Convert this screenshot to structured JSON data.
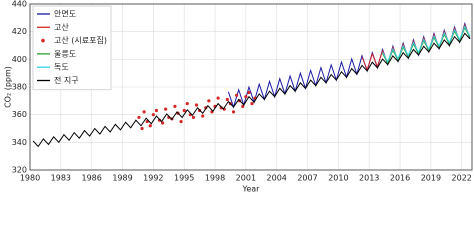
{
  "chart_data": {
    "type": "line",
    "xlabel": "Year",
    "ylabel": "CO₂ (ppm)",
    "xlim": [
      1980,
      2023
    ],
    "ylim": [
      320,
      440
    ],
    "xticks": [
      1980,
      1983,
      1986,
      1989,
      1992,
      1995,
      1998,
      2001,
      2004,
      2007,
      2010,
      2013,
      2016,
      2019,
      2022
    ],
    "yticks": [
      320,
      340,
      360,
      380,
      400,
      420,
      440
    ],
    "grid": true,
    "legend": "upper left",
    "series": [
      {
        "name": "안면도",
        "color": "#1a1aa6",
        "mode": "line",
        "x": [
          1999.3,
          1999.8,
          2000.3,
          2000.8,
          2001.3,
          2001.8,
          2002.3,
          2002.8,
          2003.3,
          2003.8,
          2004.3,
          2004.8,
          2005.3,
          2005.8,
          2006.3,
          2006.8,
          2007.3,
          2007.8,
          2008.3,
          2008.8,
          2009.3,
          2009.8,
          2010.3,
          2010.8,
          2011.3,
          2011.8,
          2012.3,
          2012.8,
          2013.3,
          2013.8,
          2014.3,
          2014.8,
          2015.3,
          2015.8,
          2016.3,
          2016.8,
          2017.3,
          2017.8,
          2018.3,
          2018.8,
          2019.3,
          2019.8,
          2020.3,
          2020.8,
          2021.3,
          2021.8,
          2022.3,
          2022.8
        ],
        "values": [
          376.5,
          365.5,
          378,
          367,
          380,
          369,
          382,
          371,
          384,
          373,
          386,
          375,
          388,
          377,
          390,
          379,
          392,
          381,
          394,
          383,
          396,
          385,
          398,
          387,
          400.3,
          389.3,
          402.6,
          391.6,
          404.9,
          393.9,
          407.2,
          396.2,
          409.5,
          398.5,
          411.8,
          400.8,
          414.1,
          403.1,
          416.4,
          405.4,
          418.7,
          407.7,
          421,
          410,
          423.4,
          412.4,
          425.8,
          414.8
        ]
      },
      {
        "name": "고산",
        "color": "#d62728",
        "mode": "line",
        "x": [
          2012.3,
          2012.8,
          2013.3,
          2013.8,
          2014.3,
          2014.8,
          2015.3,
          2015.8,
          2016.3,
          2016.8,
          2017.3,
          2017.8,
          2018.3,
          2018.8,
          2019.3,
          2019.8,
          2020.3,
          2020.8,
          2021.3,
          2021.8,
          2022.3,
          2022.8
        ],
        "values": [
          401.6,
          392.6,
          403.9,
          394.9,
          406.2,
          397.2,
          408.5,
          399.5,
          410.8,
          401.8,
          413.1,
          404.1,
          415.4,
          406.4,
          417.7,
          408.7,
          420,
          411,
          422.4,
          413.4,
          424.8,
          415.8
        ]
      },
      {
        "name": "고산 (시료포집)",
        "color": "#d62728",
        "mode": "markers",
        "x": [
          1990.6,
          1990.9,
          1991.1,
          1991.4,
          1991.7,
          1992.0,
          1992.3,
          1992.6,
          1992.9,
          1993.2,
          1993.5,
          1993.8,
          1994.1,
          1994.4,
          1994.7,
          1995.0,
          1995.3,
          1995.6,
          1995.9,
          1996.2,
          1996.5,
          1996.8,
          1997.1,
          1997.4,
          1997.7,
          1998.0,
          1998.3,
          1998.6,
          1998.9,
          1999.2,
          1999.5,
          1999.8,
          2000.1,
          2000.4,
          2000.7,
          2001.0,
          2001.3,
          2001.6,
          2001.9
        ],
        "values": [
          358,
          350,
          362,
          355,
          352,
          360,
          363,
          356,
          354,
          364,
          358,
          357,
          366,
          361,
          355,
          363,
          368,
          360,
          358,
          367,
          363,
          359,
          365,
          370,
          362,
          366,
          372,
          365,
          364,
          371,
          368,
          362,
          374,
          370,
          366,
          373,
          376,
          368,
          372
        ]
      },
      {
        "name": "울릉도",
        "color": "#2ca02c",
        "mode": "line",
        "x": [
          2014.3,
          2014.8,
          2015.3,
          2015.8,
          2016.3,
          2016.8,
          2017.3,
          2017.8,
          2018.3,
          2018.8,
          2019.3,
          2019.8,
          2020.3,
          2020.8,
          2021.3,
          2021.8,
          2022.3,
          2022.8
        ],
        "values": [
          404.2,
          397.2,
          406.5,
          399.5,
          408.8,
          401.8,
          411.1,
          404.1,
          413.4,
          406.4,
          415.7,
          408.7,
          418,
          411,
          420.4,
          413.4,
          422.8,
          415.8
        ]
      },
      {
        "name": "독도",
        "color": "#33d6e6",
        "mode": "line",
        "x": [
          2014.3,
          2014.8,
          2015.3,
          2015.8,
          2016.3,
          2016.8,
          2017.3,
          2017.8,
          2018.3,
          2018.8,
          2019.3,
          2019.8,
          2020.3,
          2020.8,
          2021.3,
          2021.8,
          2022.3,
          2022.8
        ],
        "values": [
          405.2,
          398.2,
          407.5,
          400.5,
          409.8,
          402.8,
          412.1,
          405.1,
          414.4,
          407.4,
          416.7,
          409.7,
          419,
          412,
          421.4,
          414.4,
          423.8,
          416.8
        ]
      },
      {
        "name": "전 지구",
        "color": "#000000",
        "mode": "line",
        "x": [
          1980.3,
          1980.8,
          1981.3,
          1981.8,
          1982.3,
          1982.8,
          1983.3,
          1983.8,
          1984.3,
          1984.8,
          1985.3,
          1985.8,
          1986.3,
          1986.8,
          1987.3,
          1987.8,
          1988.3,
          1988.8,
          1989.3,
          1989.8,
          1990.3,
          1990.8,
          1991.3,
          1991.8,
          1992.3,
          1992.8,
          1993.3,
          1993.8,
          1994.3,
          1994.8,
          1995.3,
          1995.8,
          1996.3,
          1996.8,
          1997.3,
          1997.8,
          1998.3,
          1998.8,
          1999.3,
          1999.8,
          2000.3,
          2000.8,
          2001.3,
          2001.8,
          2002.3,
          2002.8,
          2003.3,
          2003.8,
          2004.3,
          2004.8,
          2005.3,
          2005.8,
          2006.3,
          2006.8,
          2007.3,
          2007.8,
          2008.3,
          2008.8,
          2009.3,
          2009.8,
          2010.3,
          2010.8,
          2011.3,
          2011.8,
          2012.3,
          2012.8,
          2013.3,
          2013.8,
          2014.3,
          2014.8,
          2015.3,
          2015.8,
          2016.3,
          2016.8,
          2017.3,
          2017.8,
          2018.3,
          2018.8,
          2019.3,
          2019.8,
          2020.3,
          2020.8,
          2021.3,
          2021.8,
          2022.3,
          2022.8
        ],
        "values": [
          341,
          337,
          342.5,
          338.5,
          344,
          340,
          345.5,
          341.5,
          347,
          343,
          348.5,
          344.5,
          350,
          346,
          351.5,
          347.5,
          353,
          349,
          354.5,
          350.5,
          356,
          352,
          357.5,
          353.5,
          359,
          355,
          360.5,
          356.5,
          362,
          358,
          363.5,
          359.5,
          365,
          361,
          366.5,
          362.5,
          368,
          364,
          369.5,
          365.5,
          371,
          367,
          373,
          369,
          375,
          371,
          377,
          373,
          379,
          375,
          381,
          377,
          383,
          379,
          385,
          381,
          387,
          383,
          389,
          385,
          391,
          387,
          393.3,
          389.3,
          395.6,
          391.6,
          397.9,
          393.9,
          400.2,
          396.2,
          402.5,
          398.5,
          404.8,
          400.8,
          407.1,
          403.1,
          409.4,
          405.4,
          411.7,
          407.7,
          414,
          410,
          416.4,
          412.4,
          418.8,
          414.8
        ]
      }
    ]
  }
}
